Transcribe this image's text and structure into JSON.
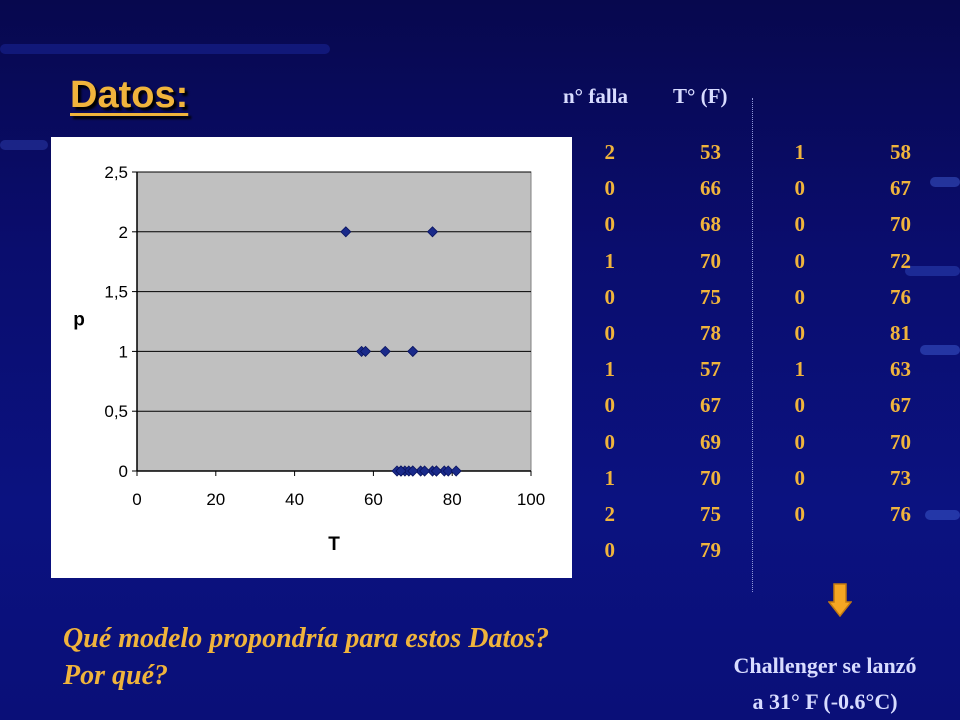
{
  "slide": {
    "title": "Datos:",
    "question": "Qué modelo propondría para estos Datos? Por qué?",
    "note_line1": "Challenger se lanzó",
    "note_line2": "a 31° F (-0.6°C)",
    "arrow_icon": "down-arrow-icon"
  },
  "table": {
    "headers": [
      "n° falla",
      "T° (F)"
    ],
    "left": [
      {
        "fallas": "2",
        "temp": "53"
      },
      {
        "fallas": "0",
        "temp": "66"
      },
      {
        "fallas": "0",
        "temp": "68"
      },
      {
        "fallas": "1",
        "temp": "70"
      },
      {
        "fallas": "0",
        "temp": "75"
      },
      {
        "fallas": "0",
        "temp": "78"
      },
      {
        "fallas": "1",
        "temp": "57"
      },
      {
        "fallas": "0",
        "temp": "67"
      },
      {
        "fallas": "0",
        "temp": "69"
      },
      {
        "fallas": "1",
        "temp": "70"
      },
      {
        "fallas": "2",
        "temp": "75"
      },
      {
        "fallas": "0",
        "temp": "79"
      }
    ],
    "right": [
      {
        "fallas": "1",
        "temp": "58"
      },
      {
        "fallas": "0",
        "temp": "67"
      },
      {
        "fallas": "0",
        "temp": "70"
      },
      {
        "fallas": "0",
        "temp": "72"
      },
      {
        "fallas": "0",
        "temp": "76"
      },
      {
        "fallas": "0",
        "temp": "81"
      },
      {
        "fallas": "1",
        "temp": "63"
      },
      {
        "fallas": "0",
        "temp": "67"
      },
      {
        "fallas": "0",
        "temp": "70"
      },
      {
        "fallas": "0",
        "temp": "73"
      },
      {
        "fallas": "0",
        "temp": "76"
      }
    ]
  },
  "colors": {
    "accent": "#f0b43c",
    "text_light": "#d8dcff",
    "plot_bg": "#c0c0c0",
    "marker": "#1a2a8a"
  },
  "chart_data": {
    "type": "scatter",
    "xlabel": "T",
    "ylabel": "p",
    "xlim": [
      0,
      100
    ],
    "ylim": [
      0,
      2.5
    ],
    "xticks": [
      "0",
      "20",
      "40",
      "60",
      "80",
      "100"
    ],
    "yticks": [
      "0",
      "0,5",
      "1",
      "1,5",
      "2",
      "2,5"
    ],
    "grid": "horizontal",
    "legend": "none",
    "points": [
      {
        "x": 53,
        "y": 2
      },
      {
        "x": 66,
        "y": 0
      },
      {
        "x": 68,
        "y": 0
      },
      {
        "x": 70,
        "y": 1
      },
      {
        "x": 75,
        "y": 0
      },
      {
        "x": 78,
        "y": 0
      },
      {
        "x": 57,
        "y": 1
      },
      {
        "x": 67,
        "y": 0
      },
      {
        "x": 69,
        "y": 0
      },
      {
        "x": 70,
        "y": 1
      },
      {
        "x": 75,
        "y": 2
      },
      {
        "x": 79,
        "y": 0
      },
      {
        "x": 58,
        "y": 1
      },
      {
        "x": 67,
        "y": 0
      },
      {
        "x": 70,
        "y": 0
      },
      {
        "x": 72,
        "y": 0
      },
      {
        "x": 76,
        "y": 0
      },
      {
        "x": 81,
        "y": 0
      },
      {
        "x": 63,
        "y": 1
      },
      {
        "x": 67,
        "y": 0
      },
      {
        "x": 70,
        "y": 0
      },
      {
        "x": 73,
        "y": 0
      },
      {
        "x": 76,
        "y": 0
      }
    ]
  }
}
